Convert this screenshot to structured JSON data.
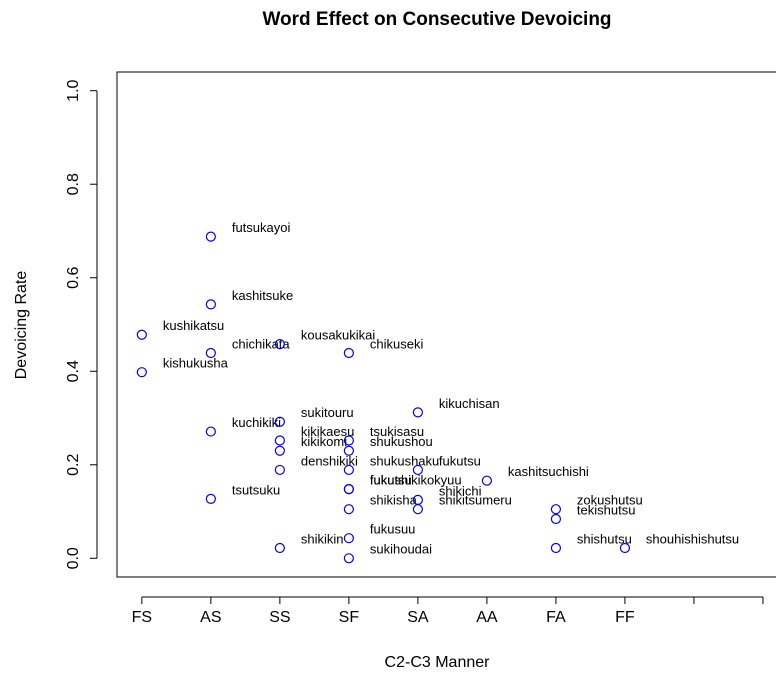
{
  "chart_data": {
    "type": "scatter",
    "title": "Word Effect on Consecutive Devoicing",
    "xlabel": "C2-C3 Manner",
    "ylabel": "Devoicing Rate",
    "categories": [
      "FS",
      "AS",
      "SS",
      "SF",
      "SA",
      "AA",
      "FA",
      "FF",
      null,
      null
    ],
    "xlim": [
      0.64,
      10.36
    ],
    "ylim": [
      -0.04,
      1.04
    ],
    "yticks": [
      {
        "value": 0,
        "label": "0.0"
      },
      0.2,
      0.4,
      0.6,
      0.8,
      {
        "value": 1,
        "label": "1.0"
      }
    ],
    "series": [
      {
        "color": "#0000ff",
        "x": [
          1,
          1,
          2,
          2,
          2,
          2,
          2,
          3,
          3,
          3,
          3,
          3,
          3,
          4,
          4,
          4,
          4,
          4,
          4,
          4,
          4,
          4,
          5,
          5,
          5,
          5,
          6,
          7,
          7,
          7,
          8
        ],
        "values": [
          0.478,
          0.398,
          0.688,
          0.543,
          0.439,
          0.271,
          0.127,
          0.458,
          0.292,
          0.252,
          0.23,
          0.189,
          0.022,
          0.439,
          0.252,
          0.23,
          0.189,
          0.148,
          0.148,
          0.105,
          0.043,
          0.0,
          0.312,
          0.189,
          0.125,
          0.105,
          0.166,
          0.105,
          0.084,
          0.022,
          0.022
        ],
        "labels": [
          "kushikatsu",
          "kishukusha",
          "futsukayoi",
          "kashitsuke",
          "chichikata",
          "kuchikiki",
          "tsutsuku",
          "kousakukikai",
          "sukitouru",
          "kikikaesu",
          "kikikomi",
          "denshikiki",
          "shikikin",
          "chikuseki",
          "tsukisasu",
          "shukushou",
          "shukushaku",
          "fukutsu",
          "fukushikikokyuu",
          "shikisha",
          "fukusuu",
          "sukihoudai",
          "kikuchisan",
          "fukutsu",
          "shikichi",
          "shikitsumeru",
          "kashitsuchishi",
          "zokushutsu",
          "tekishutsu",
          "shishutsu",
          "shouhishishutsu"
        ]
      }
    ]
  }
}
